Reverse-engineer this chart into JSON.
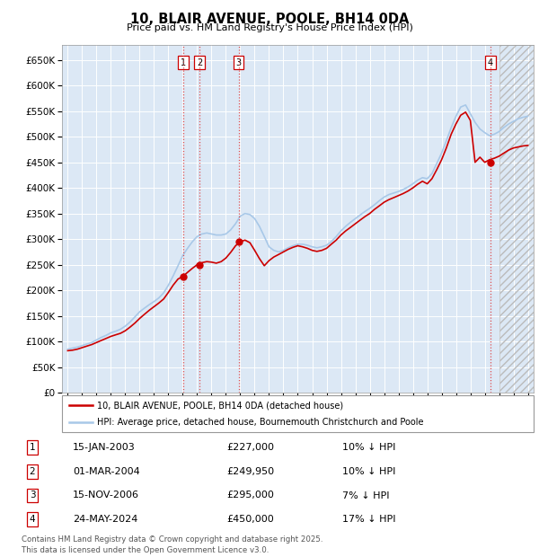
{
  "title": "10, BLAIR AVENUE, POOLE, BH14 0DA",
  "subtitle": "Price paid vs. HM Land Registry's House Price Index (HPI)",
  "hpi_color": "#a8c8e8",
  "price_color": "#cc0000",
  "transactions": [
    {
      "num": 1,
      "date": "15-JAN-2003",
      "price": 227000,
      "price_str": "£227,000",
      "pct": "10%",
      "x": 2003.04
    },
    {
      "num": 2,
      "date": "01-MAR-2004",
      "price": 249950,
      "price_str": "£249,950",
      "pct": "10%",
      "x": 2004.17
    },
    {
      "num": 3,
      "date": "15-NOV-2006",
      "price": 295000,
      "price_str": "£295,000",
      "pct": "7%",
      "x": 2006.88
    },
    {
      "num": 4,
      "date": "24-MAY-2024",
      "price": 450000,
      "price_str": "£450,000",
      "pct": "17%",
      "x": 2024.4
    }
  ],
  "legend_line1": "10, BLAIR AVENUE, POOLE, BH14 0DA (detached house)",
  "legend_line2": "HPI: Average price, detached house, Bournemouth Christchurch and Poole",
  "footer": "Contains HM Land Registry data © Crown copyright and database right 2025.\nThis data is licensed under the Open Government Licence v3.0.",
  "plot_bg_color": "#dce8f5",
  "years_hpi": [
    1995.0,
    1995.33,
    1995.67,
    1996.0,
    1996.33,
    1996.67,
    1997.0,
    1997.33,
    1997.67,
    1998.0,
    1998.33,
    1998.67,
    1999.0,
    1999.33,
    1999.67,
    2000.0,
    2000.33,
    2000.67,
    2001.0,
    2001.33,
    2001.67,
    2002.0,
    2002.33,
    2002.67,
    2003.0,
    2003.33,
    2003.67,
    2004.0,
    2004.33,
    2004.67,
    2005.0,
    2005.33,
    2005.67,
    2006.0,
    2006.33,
    2006.67,
    2007.0,
    2007.33,
    2007.67,
    2008.0,
    2008.33,
    2008.67,
    2009.0,
    2009.33,
    2009.67,
    2010.0,
    2010.33,
    2010.67,
    2011.0,
    2011.33,
    2011.67,
    2012.0,
    2012.33,
    2012.67,
    2013.0,
    2013.33,
    2013.67,
    2014.0,
    2014.33,
    2014.67,
    2015.0,
    2015.33,
    2015.67,
    2016.0,
    2016.33,
    2016.67,
    2017.0,
    2017.33,
    2017.67,
    2018.0,
    2018.33,
    2018.67,
    2019.0,
    2019.33,
    2019.67,
    2020.0,
    2020.33,
    2020.67,
    2021.0,
    2021.33,
    2021.67,
    2022.0,
    2022.33,
    2022.67,
    2023.0,
    2023.33,
    2023.67,
    2024.0,
    2024.33,
    2024.67,
    2025.0,
    2025.33,
    2025.67,
    2026.0,
    2026.33,
    2026.67,
    2027.0
  ],
  "hpi_values": [
    85000,
    87000,
    89000,
    92000,
    95000,
    98000,
    103000,
    108000,
    112000,
    117000,
    120000,
    124000,
    130000,
    138000,
    148000,
    158000,
    165000,
    172000,
    178000,
    185000,
    195000,
    210000,
    228000,
    248000,
    268000,
    282000,
    295000,
    305000,
    310000,
    312000,
    310000,
    308000,
    308000,
    310000,
    318000,
    330000,
    345000,
    350000,
    348000,
    340000,
    325000,
    305000,
    285000,
    278000,
    275000,
    278000,
    283000,
    287000,
    290000,
    290000,
    288000,
    285000,
    283000,
    285000,
    288000,
    295000,
    305000,
    316000,
    325000,
    333000,
    340000,
    347000,
    354000,
    360000,
    367000,
    375000,
    382000,
    387000,
    390000,
    393000,
    397000,
    402000,
    408000,
    415000,
    420000,
    418000,
    428000,
    448000,
    468000,
    492000,
    518000,
    540000,
    558000,
    562000,
    545000,
    528000,
    515000,
    508000,
    502000,
    505000,
    510000,
    518000,
    525000,
    530000,
    535000,
    538000,
    540000
  ],
  "price_values": [
    82000,
    83000,
    85000,
    88000,
    91000,
    94000,
    98000,
    102000,
    106000,
    110000,
    113000,
    116000,
    121000,
    128000,
    136000,
    145000,
    153000,
    161000,
    168000,
    175000,
    183000,
    196000,
    210000,
    222000,
    227000,
    235000,
    243000,
    249950,
    254000,
    256000,
    255000,
    253000,
    256000,
    263000,
    274000,
    287000,
    295000,
    298000,
    293000,
    278000,
    262000,
    248000,
    258000,
    265000,
    270000,
    275000,
    280000,
    284000,
    287000,
    285000,
    282000,
    278000,
    276000,
    278000,
    282000,
    290000,
    298000,
    308000,
    316000,
    323000,
    330000,
    337000,
    344000,
    350000,
    358000,
    365000,
    372000,
    377000,
    381000,
    385000,
    389000,
    394000,
    400000,
    407000,
    413000,
    408000,
    418000,
    436000,
    455000,
    478000,
    505000,
    525000,
    542000,
    548000,
    532000,
    450000,
    460000,
    450000,
    455000,
    458000,
    462000,
    468000,
    474000,
    478000,
    480000,
    482000,
    483000
  ]
}
